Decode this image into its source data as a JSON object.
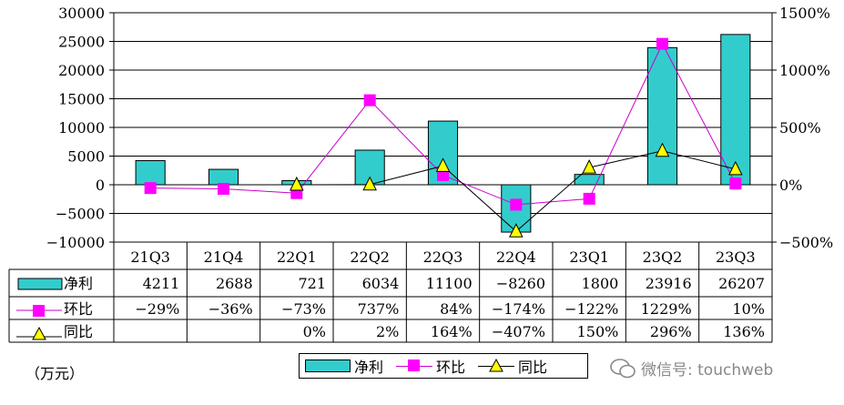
{
  "chart_data": {
    "type": "bar+line",
    "categories": [
      "21Q3",
      "21Q4",
      "22Q1",
      "22Q2",
      "22Q3",
      "22Q4",
      "23Q1",
      "23Q2",
      "23Q3"
    ],
    "series": [
      {
        "name": "净利",
        "kind": "bar",
        "axis": "left",
        "values": [
          4211,
          2688,
          721,
          6034,
          11100,
          -8260,
          1800,
          23916,
          26207
        ],
        "color": "#33CCCC",
        "labels": [
          "4211",
          "2688",
          "721",
          "6034",
          "11100",
          "−8260",
          "1800",
          "23916",
          "26207"
        ]
      },
      {
        "name": "环比",
        "kind": "line",
        "axis": "right",
        "marker": "square",
        "values": [
          -29,
          -36,
          -73,
          737,
          84,
          -174,
          -122,
          1229,
          10
        ],
        "color": "#CC00CC",
        "marker_color": "#FF00FF",
        "labels": [
          "−29%",
          "−36%",
          "−73%",
          "737%",
          "84%",
          "−174%",
          "−122%",
          "1229%",
          "10%"
        ]
      },
      {
        "name": "同比",
        "kind": "line",
        "axis": "right",
        "marker": "triangle",
        "values": [
          null,
          null,
          0,
          2,
          164,
          -407,
          150,
          296,
          136
        ],
        "color": "#000000",
        "marker_color": "#FFFF00",
        "labels": [
          "",
          "",
          "0%",
          "2%",
          "164%",
          "−407%",
          "150%",
          "296%",
          "136%"
        ]
      }
    ],
    "ylim_left": [
      -10000,
      30000
    ],
    "yticks_left": [
      "30000",
      "25000",
      "20000",
      "15000",
      "10000",
      "5000",
      "0",
      "−5000",
      "−10000"
    ],
    "ylim_right": [
      -500,
      1500
    ],
    "yticks_right": [
      "1500%",
      "1000%",
      "500%",
      "0%",
      "−500%"
    ],
    "grid": true,
    "legend_position": "bottom"
  },
  "unit_label": "（万元）",
  "watermark": "微信号: touchweb"
}
